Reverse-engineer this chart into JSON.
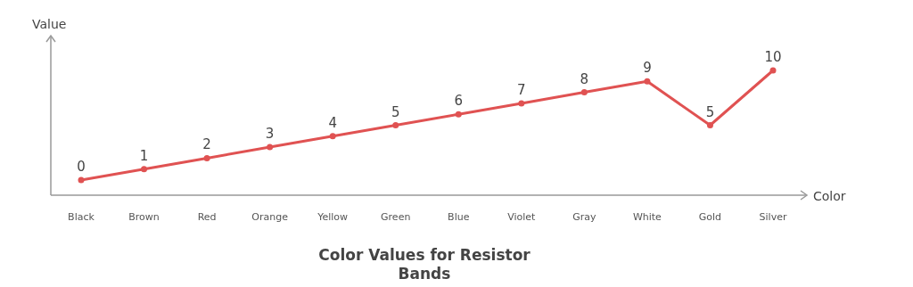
{
  "chart_data": {
    "type": "line",
    "title": "Color Values for Resistor Bands",
    "xlabel": "Color",
    "ylabel": "Value",
    "categories": [
      "Black",
      "Brown",
      "Red",
      "Orange",
      "Yellow",
      "Green",
      "Blue",
      "Violet",
      "Gray",
      "White",
      "Gold",
      "Silver"
    ],
    "series": [
      {
        "color": "#e05252",
        "values": [
          0,
          1,
          2,
          3,
          4,
          5,
          6,
          7,
          8,
          9,
          5,
          10
        ]
      }
    ],
    "data_labels": true,
    "marker": "circle"
  }
}
